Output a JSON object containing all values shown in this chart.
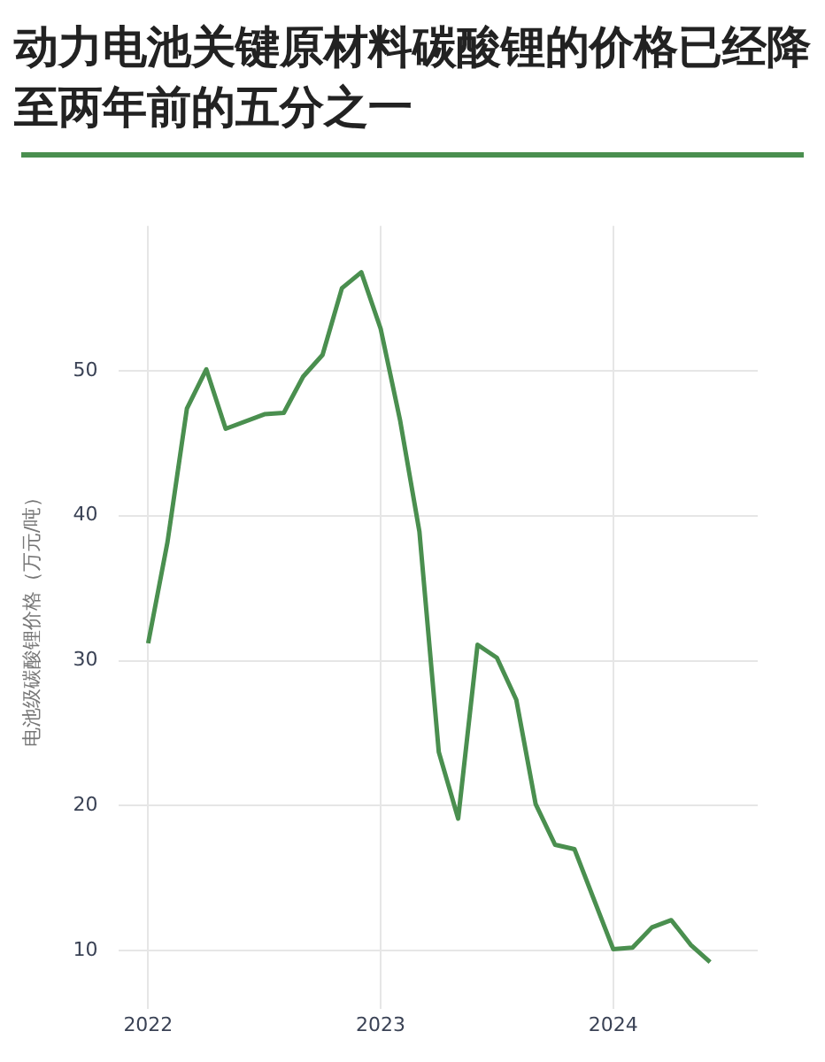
{
  "chart_data": {
    "type": "line",
    "title": "动力电池关键原材料碳酸锂的价格已经降至两年前的五分之一",
    "ylabel": "电池级碳酸锂价格（万元/吨）",
    "series": [
      {
        "color": "#4a8f4f",
        "x": [
          "2022-01",
          "2022-02",
          "2022-03",
          "2022-04",
          "2022-05",
          "2022-07",
          "2022-08",
          "2022-09",
          "2022-10",
          "2022-11",
          "2022-12",
          "2023-01",
          "2023-02",
          "2023-03",
          "2023-04",
          "2023-05",
          "2023-06",
          "2023-07",
          "2023-08",
          "2023-09",
          "2023-10",
          "2023-11",
          "2024-01",
          "2024-02",
          "2024-03",
          "2024-04",
          "2024-05",
          "2024-06"
        ],
        "values": [
          31.2,
          38.2,
          47.4,
          50.1,
          46.0,
          47.0,
          47.1,
          49.6,
          51.1,
          55.7,
          56.8,
          52.9,
          46.6,
          38.9,
          23.7,
          19.1,
          31.1,
          30.2,
          27.3,
          20.1,
          17.3,
          17.0,
          10.1,
          10.2,
          11.6,
          12.1,
          10.4,
          9.2
        ]
      }
    ],
    "xlim": [
      "2021-11-16",
      "2024-08-15"
    ],
    "xticks": [
      "2022",
      "2023",
      "2024"
    ],
    "ylim": [
      6,
      60
    ],
    "yticks": [
      10,
      20,
      30,
      40,
      50
    ],
    "grid": true,
    "legend": false,
    "marker": "none",
    "line_style": "solid"
  }
}
